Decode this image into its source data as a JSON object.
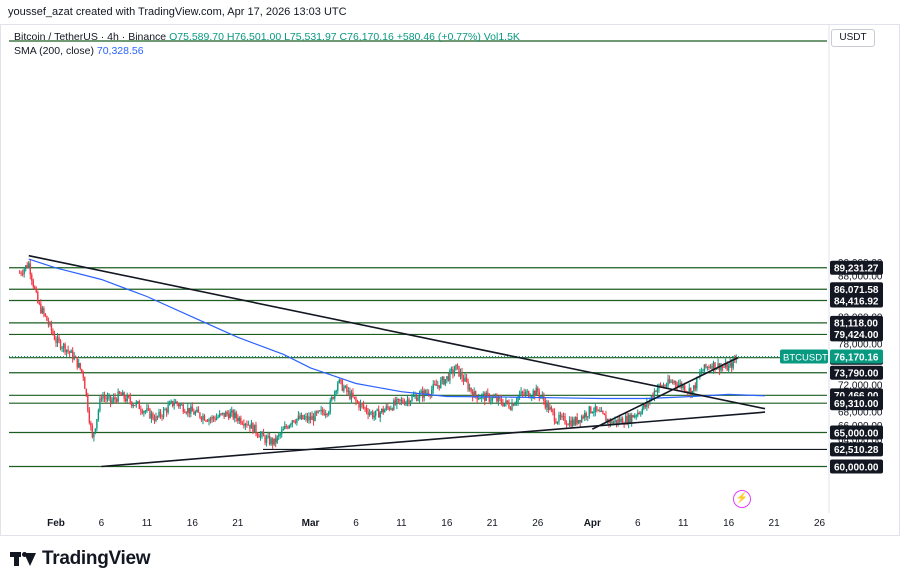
{
  "credit": "youssef_azat created with TradingView.com, Apr 17, 2026 13:03 UTC",
  "branding": {
    "logo_text": "TradingView"
  },
  "currency_button": "USDT",
  "legend": {
    "symbol": "Bitcoin / TetherUS · 4h · Binance",
    "ohlc": "O75,589.70 H76,501.00 L75,531.97 C76,170.16 +580.46 (+0.77%) Vol1.5K",
    "sma_label": "SMA (200, close)",
    "sma_value": "70,328.56"
  },
  "colors": {
    "up": "#089981",
    "down": "#f23645",
    "sma": "#2962ff",
    "level_line": "#1b5e20",
    "trendline": "#131722",
    "price_badge": "#089981"
  },
  "chart_data": {
    "type": "candlestick",
    "timeframe": "4h",
    "exchange": "Binance",
    "ylim": [
      59000,
      91500
    ],
    "y_ticks": [
      90000,
      88000,
      82000,
      80000,
      78000,
      72000,
      68000,
      66000,
      64000
    ],
    "x_ticks": [
      "Feb",
      "6",
      "11",
      "16",
      "21",
      "Mar",
      "6",
      "11",
      "16",
      "21",
      "26",
      "Apr",
      "6",
      "11",
      "16",
      "21",
      "26"
    ],
    "last_price": {
      "label": "BTCUSDT",
      "value": "76,170.16"
    },
    "levels": [
      "89,231.27",
      "86,071.58",
      "84,416.92",
      "81,118.00",
      "79,424.00",
      "76,000.00",
      "73,790.00",
      "70,466.00",
      "69,310.00",
      "65,000.00",
      "62,510.28",
      "60,000.00"
    ],
    "price_path": [
      {
        "date": "Jan 28",
        "price": 88500
      },
      {
        "date": "Jan 29",
        "price": 89800
      },
      {
        "date": "Jan 30",
        "price": 84000
      },
      {
        "date": "Jan 31",
        "price": 81500
      },
      {
        "date": "Feb 1",
        "price": 78500
      },
      {
        "date": "Feb 2",
        "price": 77500
      },
      {
        "date": "Feb 3",
        "price": 76000
      },
      {
        "date": "Feb 4",
        "price": 73500
      },
      {
        "date": "Feb 5",
        "price": 64000
      },
      {
        "date": "Feb 6",
        "price": 70500
      },
      {
        "date": "Feb 7",
        "price": 69500
      },
      {
        "date": "Feb 8",
        "price": 70500
      },
      {
        "date": "Feb 10",
        "price": 69000
      },
      {
        "date": "Feb 12",
        "price": 67000
      },
      {
        "date": "Feb 14",
        "price": 69500
      },
      {
        "date": "Feb 16",
        "price": 68000
      },
      {
        "date": "Feb 18",
        "price": 67000
      },
      {
        "date": "Feb 20",
        "price": 67800
      },
      {
        "date": "Feb 22",
        "price": 66500
      },
      {
        "date": "Feb 24",
        "price": 64000
      },
      {
        "date": "Feb 25",
        "price": 63500
      },
      {
        "date": "Feb 27",
        "price": 67000
      },
      {
        "date": "Mar 1",
        "price": 67000
      },
      {
        "date": "Mar 3",
        "price": 68500
      },
      {
        "date": "Mar 4",
        "price": 72500
      },
      {
        "date": "Mar 6",
        "price": 69500
      },
      {
        "date": "Mar 8",
        "price": 67500
      },
      {
        "date": "Mar 10",
        "price": 69000
      },
      {
        "date": "Mar 12",
        "price": 70000
      },
      {
        "date": "Mar 14",
        "price": 71000
      },
      {
        "date": "Mar 16",
        "price": 73000
      },
      {
        "date": "Mar 17",
        "price": 74500
      },
      {
        "date": "Mar 19",
        "price": 70500
      },
      {
        "date": "Mar 21",
        "price": 70000
      },
      {
        "date": "Mar 23",
        "price": 69000
      },
      {
        "date": "Mar 24",
        "price": 70500
      },
      {
        "date": "Mar 26",
        "price": 71000
      },
      {
        "date": "Mar 28",
        "price": 67000
      },
      {
        "date": "Mar 30",
        "price": 66500
      },
      {
        "date": "Apr 1",
        "price": 68500
      },
      {
        "date": "Apr 3",
        "price": 66500
      },
      {
        "date": "Apr 5",
        "price": 67000
      },
      {
        "date": "Apr 7",
        "price": 69000
      },
      {
        "date": "Apr 8",
        "price": 71500
      },
      {
        "date": "Apr 10",
        "price": 72500
      },
      {
        "date": "Apr 12",
        "price": 71000
      },
      {
        "date": "Apr 13",
        "price": 74000
      },
      {
        "date": "Apr 14",
        "price": 75000
      },
      {
        "date": "Apr 16",
        "price": 74500
      },
      {
        "date": "Apr 17",
        "price": 76200
      }
    ]
  }
}
